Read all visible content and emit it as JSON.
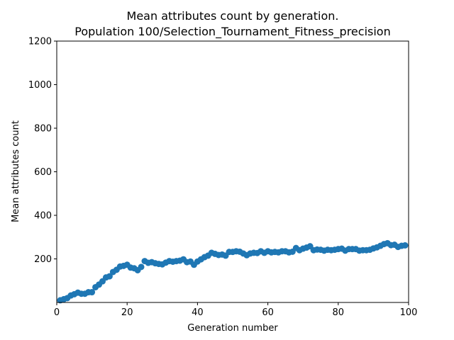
{
  "chart_data": {
    "type": "scatter",
    "title_line1": "Mean attributes count by generation.",
    "title_line2": "Population 100/Selection_Tournament_Fitness_precision",
    "xlabel": "Generation number",
    "ylabel": "Mean attributes count",
    "xlim": [
      0,
      100
    ],
    "ylim": [
      0,
      1200
    ],
    "xticks": [
      0,
      20,
      40,
      60,
      80,
      100
    ],
    "yticks": [
      200,
      400,
      600,
      800,
      1000,
      1200
    ],
    "grid": false,
    "marker_color": "#1f77b4",
    "x": [
      1,
      2,
      3,
      4,
      5,
      6,
      7,
      8,
      9,
      10,
      11,
      12,
      13,
      14,
      15,
      16,
      17,
      18,
      19,
      20,
      21,
      22,
      23,
      24,
      25,
      26,
      27,
      28,
      29,
      30,
      31,
      32,
      33,
      34,
      35,
      36,
      37,
      38,
      39,
      40,
      41,
      42,
      43,
      44,
      45,
      46,
      47,
      48,
      49,
      50,
      51,
      52,
      53,
      54,
      55,
      56,
      57,
      58,
      59,
      60,
      61,
      62,
      63,
      64,
      65,
      66,
      67,
      68,
      69,
      70,
      71,
      72,
      73,
      74,
      75,
      76,
      77,
      78,
      79,
      80,
      81,
      82,
      83,
      84,
      85,
      86,
      87,
      88,
      89,
      90,
      91,
      92,
      93,
      94,
      95,
      96,
      97,
      98,
      99
    ],
    "y": [
      10,
      15,
      20,
      32,
      38,
      45,
      40,
      40,
      47,
      47,
      70,
      82,
      97,
      115,
      120,
      140,
      150,
      165,
      168,
      173,
      160,
      157,
      148,
      163,
      190,
      182,
      185,
      180,
      177,
      175,
      183,
      190,
      187,
      190,
      192,
      198,
      185,
      188,
      173,
      188,
      198,
      208,
      215,
      228,
      223,
      218,
      220,
      215,
      232,
      232,
      235,
      233,
      225,
      217,
      225,
      228,
      227,
      235,
      228,
      235,
      230,
      232,
      230,
      235,
      235,
      230,
      233,
      250,
      240,
      247,
      252,
      258,
      240,
      243,
      242,
      238,
      242,
      240,
      242,
      245,
      247,
      238,
      245,
      245,
      245,
      238,
      240,
      240,
      242,
      248,
      253,
      260,
      268,
      272,
      263,
      265,
      255,
      260,
      262
    ]
  }
}
